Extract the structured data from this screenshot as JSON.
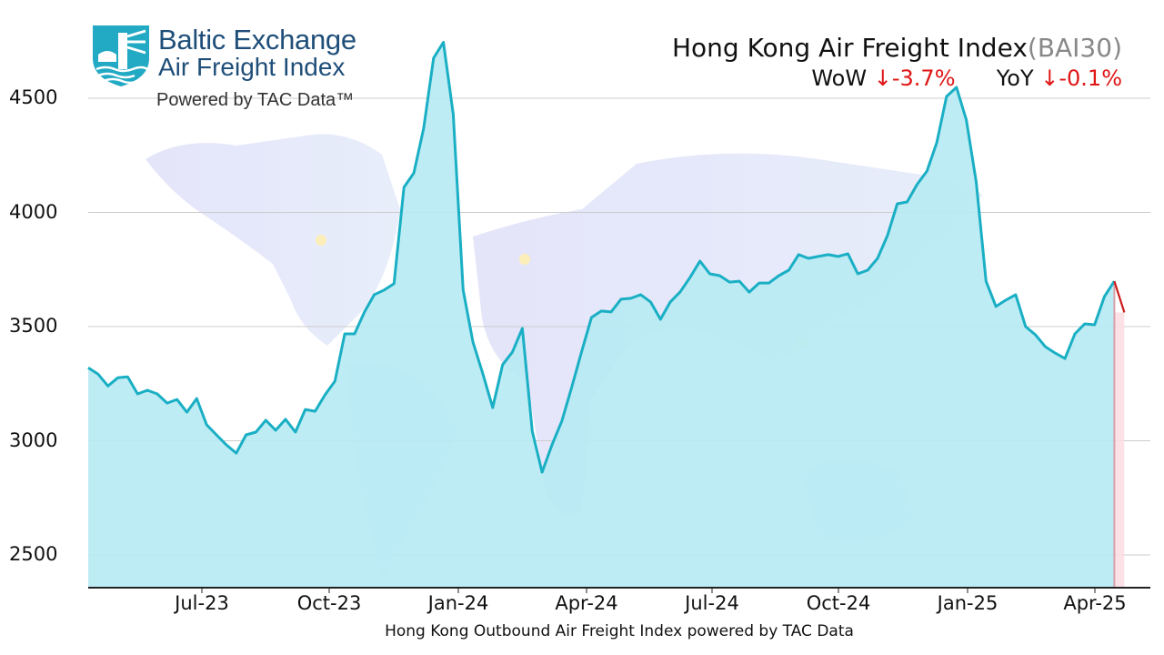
{
  "logo": {
    "line1": "Baltic Exchange",
    "line2": "Air Freight Index",
    "line3": "Powered by TAC Data™",
    "colors": {
      "shield": "#22a9c4",
      "text": "#1f4e79"
    }
  },
  "header": {
    "title": "Hong Kong Air Freight Index",
    "code": "(BAI30)",
    "wow_label": "WoW",
    "wow_value": "↓-3.7%",
    "yoy_label": "YoY",
    "yoy_value": "↓-0.1%"
  },
  "caption": "Hong Kong Outbound Air Freight Index powered by TAC Data",
  "colors": {
    "line": "#1aafc4",
    "fill": "#b8eaf3",
    "last_segment": "#cc1a1a",
    "last_band": "#fbdde2",
    "grid": "#cccccc",
    "negative": "#e01515"
  },
  "chart_data": {
    "type": "area",
    "title": "Hong Kong Air Freight Index (BAI30)",
    "subtitle": "WoW ↓-3.7%  YoY ↓-0.1%",
    "xlabel": "Hong Kong Outbound Air Freight Index powered by TAC Data",
    "ylabel": "",
    "ylim": [
      2350,
      4870
    ],
    "yticks": [
      2500,
      3000,
      3500,
      4000,
      4500
    ],
    "ytick_labels": [
      "2500",
      "3000",
      "3500",
      "4000",
      "4500"
    ],
    "xtick_labels": [
      "Jul-23",
      "Oct-23",
      "Jan-24",
      "Apr-24",
      "Jul-24",
      "Oct-24",
      "Jan-25",
      "Apr-25"
    ],
    "xtick_index": [
      11.5,
      24.5,
      37.5,
      50.5,
      63.5,
      76,
      89,
      102
    ],
    "grid": "horizontal",
    "legend": "none",
    "frequency": "weekly",
    "start_approx": "Apr-2023",
    "series": [
      {
        "name": "BAI30",
        "values": [
          3320,
          3292,
          3240,
          3276,
          3280,
          3205,
          3221,
          3205,
          3165,
          3181,
          3125,
          3185,
          3070,
          3026,
          2982,
          2946,
          3026,
          3038,
          3090,
          3046,
          3094,
          3038,
          3137,
          3129,
          3201,
          3261,
          3468,
          3468,
          3564,
          3640,
          3660,
          3688,
          4110,
          4173,
          4369,
          4676,
          4745,
          4430,
          3660,
          3432,
          3293,
          3145,
          3333,
          3389,
          3492,
          3042,
          2862,
          2982,
          3086,
          3233,
          3389,
          3540,
          3568,
          3564,
          3620,
          3624,
          3640,
          3608,
          3532,
          3608,
          3652,
          3716,
          3787,
          3731,
          3723,
          3695,
          3699,
          3651,
          3691,
          3691,
          3723,
          3747,
          3815,
          3799,
          3807,
          3815,
          3807,
          3819,
          3731,
          3747,
          3799,
          3899,
          4038,
          4046,
          4122,
          4181,
          4305,
          4508,
          4548,
          4404,
          4133,
          3699,
          3588,
          3616,
          3640,
          3500,
          3464,
          3412,
          3384,
          3360,
          3468,
          3512,
          3508,
          3632,
          3699
        ]
      }
    ],
    "last_point": {
      "value": 3562,
      "change_wow_pct": -3.7,
      "highlight": "red segment with pink band"
    }
  },
  "yticks": {
    "t0": "4500",
    "t1": "4000",
    "t2": "3500",
    "t3": "3000",
    "t4": "2500"
  },
  "xticks": {
    "t0": "Jul-23",
    "t1": "Oct-23",
    "t2": "Jan-24",
    "t3": "Apr-24",
    "t4": "Jul-24",
    "t5": "Oct-24",
    "t6": "Jan-25",
    "t7": "Apr-25"
  }
}
